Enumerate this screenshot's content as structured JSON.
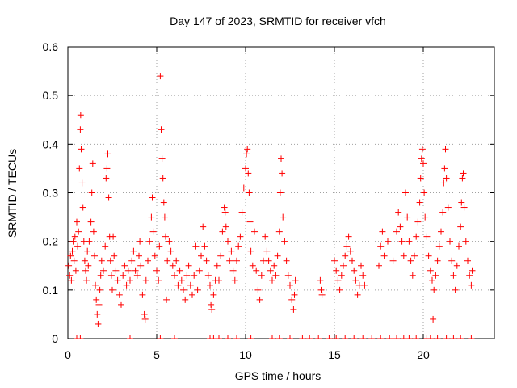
{
  "chart_data": {
    "type": "scatter",
    "title": "Day 147 of 2023, SRMTID for receiver vfch",
    "xlabel": "GPS time / hours",
    "ylabel": "SRMTID / TECUs",
    "xlim": [
      0,
      24
    ],
    "ylim": [
      0,
      0.6
    ],
    "xticks": [
      0,
      5,
      10,
      15,
      20
    ],
    "xtick_labels": [
      "0",
      "5",
      "10",
      "15",
      "20"
    ],
    "yticks": [
      0,
      0.1,
      0.2,
      0.3,
      0.4,
      0.5,
      0.6
    ],
    "ytick_labels": [
      "0",
      "0.1",
      "0.2",
      "0.3",
      "0.4",
      "0.5",
      "0.6"
    ],
    "grid": true,
    "marker": "+",
    "color": "#ff0000",
    "series": [
      {
        "name": "SRMTID",
        "points": [
          [
            0.05,
            0.15
          ],
          [
            0.1,
            0.13
          ],
          [
            0.15,
            0.17
          ],
          [
            0.2,
            0.12
          ],
          [
            0.25,
            0.18
          ],
          [
            0.3,
            0.2
          ],
          [
            0.35,
            0.16
          ],
          [
            0.4,
            0.21
          ],
          [
            0.45,
            0.14
          ],
          [
            0.5,
            0.24
          ],
          [
            0.55,
            0.19
          ],
          [
            0.6,
            0.22
          ],
          [
            0.65,
            0.35
          ],
          [
            0.7,
            0.43
          ],
          [
            0.72,
            0.46
          ],
          [
            0.75,
            0.39
          ],
          [
            0.8,
            0.32
          ],
          [
            0.85,
            0.27
          ],
          [
            0.9,
            0.2
          ],
          [
            0.95,
            0.16
          ],
          [
            1.0,
            0.14
          ],
          [
            1.05,
            0.12
          ],
          [
            1.1,
            0.18
          ],
          [
            1.15,
            0.15
          ],
          [
            1.2,
            0.2
          ],
          [
            1.3,
            0.24
          ],
          [
            1.35,
            0.3
          ],
          [
            1.4,
            0.36
          ],
          [
            1.45,
            0.22
          ],
          [
            1.5,
            0.17
          ],
          [
            1.55,
            0.11
          ],
          [
            1.6,
            0.08
          ],
          [
            1.65,
            0.05
          ],
          [
            1.7,
            0.03
          ],
          [
            1.75,
            0.07
          ],
          [
            1.8,
            0.1
          ],
          [
            1.85,
            0.13
          ],
          [
            1.9,
            0.16
          ],
          [
            2.0,
            0.14
          ],
          [
            2.1,
            0.19
          ],
          [
            2.15,
            0.33
          ],
          [
            2.2,
            0.35
          ],
          [
            2.25,
            0.38
          ],
          [
            2.3,
            0.29
          ],
          [
            2.35,
            0.21
          ],
          [
            2.4,
            0.16
          ],
          [
            2.45,
            0.13
          ],
          [
            2.5,
            0.1
          ],
          [
            2.55,
            0.21
          ],
          [
            2.6,
            0.17
          ],
          [
            2.7,
            0.14
          ],
          [
            2.8,
            0.12
          ],
          [
            2.9,
            0.09
          ],
          [
            3.0,
            0.07
          ],
          [
            3.1,
            0.13
          ],
          [
            3.2,
            0.15
          ],
          [
            3.3,
            0.11
          ],
          [
            3.4,
            0.14
          ],
          [
            3.5,
            0.12
          ],
          [
            3.6,
            0.16
          ],
          [
            3.7,
            0.18
          ],
          [
            3.8,
            0.14
          ],
          [
            3.9,
            0.13
          ],
          [
            4.0,
            0.17
          ],
          [
            4.05,
            0.2
          ],
          [
            4.1,
            0.15
          ],
          [
            4.2,
            0.09
          ],
          [
            4.3,
            0.05
          ],
          [
            4.35,
            0.04
          ],
          [
            4.4,
            0.12
          ],
          [
            4.5,
            0.16
          ],
          [
            4.6,
            0.2
          ],
          [
            4.7,
            0.25
          ],
          [
            4.75,
            0.29
          ],
          [
            4.8,
            0.22
          ],
          [
            4.9,
            0.17
          ],
          [
            5.0,
            0.14
          ],
          [
            5.1,
            0.12
          ],
          [
            5.15,
            0.19
          ],
          [
            5.2,
            0.54
          ],
          [
            5.25,
            0.43
          ],
          [
            5.3,
            0.37
          ],
          [
            5.35,
            0.33
          ],
          [
            5.4,
            0.28
          ],
          [
            5.45,
            0.25
          ],
          [
            5.5,
            0.21
          ],
          [
            5.55,
            0.08
          ],
          [
            5.6,
            0.16
          ],
          [
            5.7,
            0.2
          ],
          [
            5.8,
            0.18
          ],
          [
            5.9,
            0.15
          ],
          [
            6.0,
            0.13
          ],
          [
            6.1,
            0.16
          ],
          [
            6.2,
            0.11
          ],
          [
            6.3,
            0.14
          ],
          [
            6.4,
            0.12
          ],
          [
            6.5,
            0.1
          ],
          [
            6.6,
            0.08
          ],
          [
            6.7,
            0.13
          ],
          [
            6.8,
            0.15
          ],
          [
            6.9,
            0.11
          ],
          [
            7.0,
            0.09
          ],
          [
            7.1,
            0.13
          ],
          [
            7.2,
            0.19
          ],
          [
            7.3,
            0.1
          ],
          [
            7.4,
            0.14
          ],
          [
            7.5,
            0.17
          ],
          [
            7.6,
            0.23
          ],
          [
            7.7,
            0.19
          ],
          [
            7.8,
            0.16
          ],
          [
            7.9,
            0.13
          ],
          [
            8.0,
            0.11
          ],
          [
            8.05,
            0.07
          ],
          [
            8.1,
            0.06
          ],
          [
            8.2,
            0.09
          ],
          [
            8.3,
            0.12
          ],
          [
            8.4,
            0.15
          ],
          [
            8.5,
            0.12
          ],
          [
            8.6,
            0.17
          ],
          [
            8.7,
            0.22
          ],
          [
            8.8,
            0.27
          ],
          [
            8.85,
            0.26
          ],
          [
            8.9,
            0.23
          ],
          [
            9.0,
            0.2
          ],
          [
            9.1,
            0.16
          ],
          [
            9.2,
            0.18
          ],
          [
            9.3,
            0.14
          ],
          [
            9.4,
            0.12
          ],
          [
            9.5,
            0.16
          ],
          [
            9.6,
            0.19
          ],
          [
            9.7,
            0.21
          ],
          [
            9.8,
            0.26
          ],
          [
            9.9,
            0.31
          ],
          [
            10.0,
            0.35
          ],
          [
            10.05,
            0.38
          ],
          [
            10.1,
            0.39
          ],
          [
            10.15,
            0.34
          ],
          [
            10.2,
            0.3
          ],
          [
            10.25,
            0.24
          ],
          [
            10.3,
            0.18
          ],
          [
            10.4,
            0.15
          ],
          [
            10.5,
            0.22
          ],
          [
            10.6,
            0.14
          ],
          [
            10.7,
            0.1
          ],
          [
            10.8,
            0.08
          ],
          [
            10.9,
            0.13
          ],
          [
            11.0,
            0.16
          ],
          [
            11.1,
            0.21
          ],
          [
            11.2,
            0.18
          ],
          [
            11.3,
            0.16
          ],
          [
            11.4,
            0.14
          ],
          [
            11.5,
            0.12
          ],
          [
            11.6,
            0.15
          ],
          [
            11.7,
            0.13
          ],
          [
            11.8,
            0.17
          ],
          [
            11.9,
            0.22
          ],
          [
            11.95,
            0.3
          ],
          [
            12.0,
            0.37
          ],
          [
            12.05,
            0.34
          ],
          [
            12.1,
            0.25
          ],
          [
            12.2,
            0.2
          ],
          [
            12.3,
            0.16
          ],
          [
            12.4,
            0.13
          ],
          [
            12.5,
            0.11
          ],
          [
            12.6,
            0.08
          ],
          [
            12.7,
            0.06
          ],
          [
            12.75,
            0.09
          ],
          [
            12.8,
            0.12
          ],
          [
            14.2,
            0.12
          ],
          [
            14.25,
            0.1
          ],
          [
            14.3,
            0.09
          ],
          [
            15.0,
            0.16
          ],
          [
            15.1,
            0.14
          ],
          [
            15.2,
            0.12
          ],
          [
            15.3,
            0.1
          ],
          [
            15.4,
            0.13
          ],
          [
            15.5,
            0.15
          ],
          [
            15.6,
            0.17
          ],
          [
            15.7,
            0.19
          ],
          [
            15.8,
            0.21
          ],
          [
            15.9,
            0.18
          ],
          [
            16.0,
            0.16
          ],
          [
            16.1,
            0.14
          ],
          [
            16.2,
            0.12
          ],
          [
            16.3,
            0.09
          ],
          [
            16.4,
            0.11
          ],
          [
            16.5,
            0.15
          ],
          [
            16.6,
            0.13
          ],
          [
            16.7,
            0.11
          ],
          [
            17.5,
            0.15
          ],
          [
            17.6,
            0.19
          ],
          [
            17.7,
            0.22
          ],
          [
            17.8,
            0.17
          ],
          [
            18.0,
            0.2
          ],
          [
            18.3,
            0.16
          ],
          [
            18.5,
            0.22
          ],
          [
            18.6,
            0.26
          ],
          [
            18.7,
            0.23
          ],
          [
            18.8,
            0.2
          ],
          [
            18.9,
            0.17
          ],
          [
            19.0,
            0.3
          ],
          [
            19.1,
            0.25
          ],
          [
            19.2,
            0.2
          ],
          [
            19.3,
            0.16
          ],
          [
            19.4,
            0.13
          ],
          [
            19.5,
            0.17
          ],
          [
            19.6,
            0.21
          ],
          [
            19.7,
            0.24
          ],
          [
            19.8,
            0.28
          ],
          [
            19.85,
            0.33
          ],
          [
            19.9,
            0.37
          ],
          [
            19.95,
            0.39
          ],
          [
            20.0,
            0.36
          ],
          [
            20.05,
            0.3
          ],
          [
            20.1,
            0.25
          ],
          [
            20.2,
            0.21
          ],
          [
            20.3,
            0.17
          ],
          [
            20.4,
            0.14
          ],
          [
            20.5,
            0.12
          ],
          [
            20.55,
            0.04
          ],
          [
            20.6,
            0.1
          ],
          [
            20.7,
            0.13
          ],
          [
            20.8,
            0.16
          ],
          [
            20.9,
            0.19
          ],
          [
            21.0,
            0.22
          ],
          [
            21.1,
            0.26
          ],
          [
            21.15,
            0.32
          ],
          [
            21.2,
            0.35
          ],
          [
            21.25,
            0.39
          ],
          [
            21.3,
            0.33
          ],
          [
            21.4,
            0.27
          ],
          [
            21.5,
            0.2
          ],
          [
            21.6,
            0.16
          ],
          [
            21.7,
            0.13
          ],
          [
            21.8,
            0.1
          ],
          [
            21.9,
            0.15
          ],
          [
            22.0,
            0.19
          ],
          [
            22.1,
            0.23
          ],
          [
            22.15,
            0.28
          ],
          [
            22.2,
            0.33
          ],
          [
            22.25,
            0.34
          ],
          [
            22.3,
            0.27
          ],
          [
            22.4,
            0.2
          ],
          [
            22.5,
            0.16
          ],
          [
            22.6,
            0.13
          ],
          [
            22.7,
            0.11
          ],
          [
            22.75,
            0.14
          ]
        ],
        "zero_values_x": [
          0.5,
          0.7,
          3.5,
          5.2,
          6.0,
          8.0,
          8.2,
          8.5,
          9.0,
          9.5,
          10.3,
          11.5,
          11.9,
          12.5,
          13.2,
          13.6,
          14.1,
          14.7,
          15.1,
          15.6,
          16.1,
          16.6,
          17.1,
          17.6,
          18.1,
          18.5,
          18.9,
          19.2,
          19.6,
          20.2,
          20.4,
          20.8,
          21.3,
          21.7,
          22.1,
          22.7
        ]
      }
    ]
  }
}
